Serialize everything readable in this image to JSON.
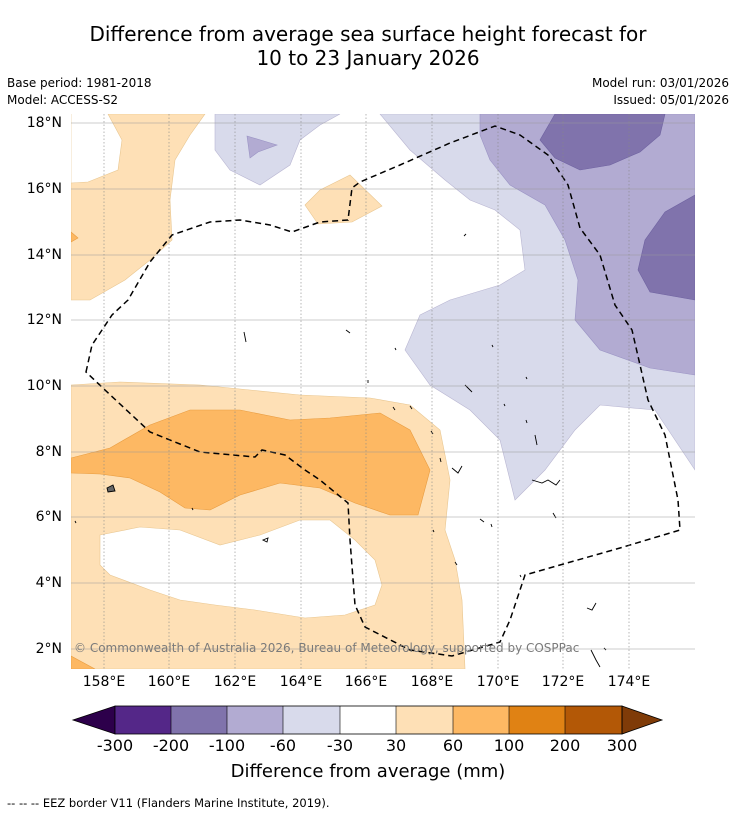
{
  "title_line1": "Difference from average sea surface height forecast for",
  "title_line2": "10 to 23 January 2026",
  "base_period": "Base period: 1981-2018",
  "model": "Model: ACCESS-S2",
  "model_run": "Model run: 03/01/2026",
  "issued": "Issued: 05/01/2026",
  "map": {
    "lat_labels": [
      "18°N",
      "16°N",
      "14°N",
      "12°N",
      "10°N",
      "8°N",
      "6°N",
      "4°N",
      "2°N"
    ],
    "lon_labels": [
      "158°E",
      "160°E",
      "162°E",
      "164°E",
      "166°E",
      "168°E",
      "170°E",
      "172°E",
      "174°E"
    ],
    "lat_range": [
      1.4,
      18.3
    ],
    "lon_range": [
      157,
      176
    ],
    "gridlines": true,
    "credit": "© Commonwealth of Australia 2026, Bureau of Meteorology, supported by COSPPac"
  },
  "colorbar": {
    "title": "Difference from average (mm)",
    "labels": [
      "-300",
      "-200",
      "-100",
      "-60",
      "-30",
      "30",
      "60",
      "100",
      "200",
      "300"
    ],
    "colors": [
      "#2d004b",
      "#542788",
      "#8073ac",
      "#b2abd2",
      "#d8daeb",
      "#ffffff",
      "#fee0b6",
      "#fdb863",
      "#e08214",
      "#b35806",
      "#7f3b08"
    ],
    "extend": "both"
  },
  "footnote": "--  --  -- EEZ border V11 (Flanders Marine Institute, 2019)."
}
